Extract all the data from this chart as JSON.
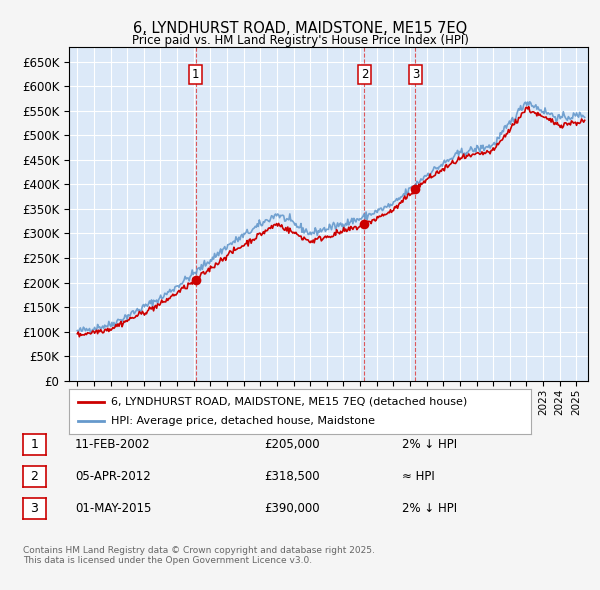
{
  "title": "6, LYNDHURST ROAD, MAIDSTONE, ME15 7EQ",
  "subtitle": "Price paid vs. HM Land Registry's House Price Index (HPI)",
  "ytick_values": [
    0,
    50000,
    100000,
    150000,
    200000,
    250000,
    300000,
    350000,
    400000,
    450000,
    500000,
    550000,
    600000,
    650000
  ],
  "xlim_start": 1994.5,
  "xlim_end": 2025.7,
  "ylim_min": 0,
  "ylim_max": 680000,
  "fig_bg_color": "#f5f5f5",
  "plot_bg_color": "#dce9f8",
  "grid_color": "#ffffff",
  "hpi_line_color": "#6699cc",
  "price_line_color": "#cc0000",
  "sale_marker_color": "#cc0000",
  "footnote": "Contains HM Land Registry data © Crown copyright and database right 2025.\nThis data is licensed under the Open Government Licence v3.0.",
  "legend_entry1": "6, LYNDHURST ROAD, MAIDSTONE, ME15 7EQ (detached house)",
  "legend_entry2": "HPI: Average price, detached house, Maidstone",
  "transactions": [
    {
      "num": 1,
      "date": "11-FEB-2002",
      "price": 205000,
      "price_str": "£205,000",
      "relation": "2% ↓ HPI",
      "x_year": 2002.11
    },
    {
      "num": 2,
      "date": "05-APR-2012",
      "price": 318500,
      "price_str": "£318,500",
      "relation": "≈ HPI",
      "x_year": 2012.26
    },
    {
      "num": 3,
      "date": "01-MAY-2015",
      "price": 390000,
      "price_str": "£390,000",
      "relation": "2% ↓ HPI",
      "x_year": 2015.33
    }
  ]
}
